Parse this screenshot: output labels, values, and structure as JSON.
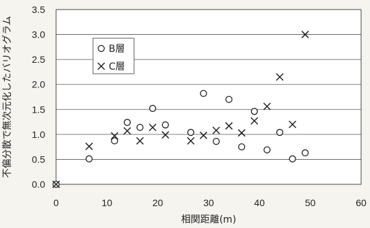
{
  "chart_data": {
    "type": "scatter",
    "xlabel": "相関距離(m)",
    "ylabel": "不偏分散で無次元化したバリオグラム",
    "xlim": [
      0,
      60
    ],
    "ylim": [
      0,
      3.5
    ],
    "x_ticks": [
      "0",
      "10",
      "20",
      "30",
      "40",
      "50",
      "60"
    ],
    "y_ticks": [
      "0.0",
      "0.5",
      "1.0",
      "1.5",
      "2.0",
      "2.5",
      "3.0",
      "3.5"
    ],
    "grid": "horizontal",
    "legend_position": "top-left",
    "series": [
      {
        "name": "B層",
        "marker": "circle",
        "color": "#222222",
        "points": [
          [
            0,
            0.0
          ],
          [
            6.5,
            0.51
          ],
          [
            11.5,
            0.87
          ],
          [
            14,
            1.24
          ],
          [
            16.5,
            1.14
          ],
          [
            19,
            1.52
          ],
          [
            21.5,
            1.19
          ],
          [
            26.5,
            1.04
          ],
          [
            29,
            1.82
          ],
          [
            31.5,
            0.86
          ],
          [
            34,
            1.7
          ],
          [
            36.5,
            0.75
          ],
          [
            39,
            1.46
          ],
          [
            41.5,
            0.69
          ],
          [
            44,
            1.04
          ],
          [
            46.5,
            0.51
          ],
          [
            49,
            0.63
          ]
        ]
      },
      {
        "name": "C層",
        "marker": "cross",
        "color": "#222222",
        "points": [
          [
            0,
            0.0
          ],
          [
            6.5,
            0.76
          ],
          [
            11.5,
            0.97
          ],
          [
            14,
            1.07
          ],
          [
            16.5,
            0.87
          ],
          [
            19,
            1.14
          ],
          [
            21.5,
            0.99
          ],
          [
            26.5,
            0.87
          ],
          [
            29,
            0.98
          ],
          [
            31.5,
            1.08
          ],
          [
            34,
            1.17
          ],
          [
            36.5,
            1.03
          ],
          [
            39,
            1.27
          ],
          [
            41.5,
            1.56
          ],
          [
            44,
            2.15
          ],
          [
            46.5,
            1.2
          ],
          [
            49,
            3.0
          ]
        ]
      }
    ]
  }
}
